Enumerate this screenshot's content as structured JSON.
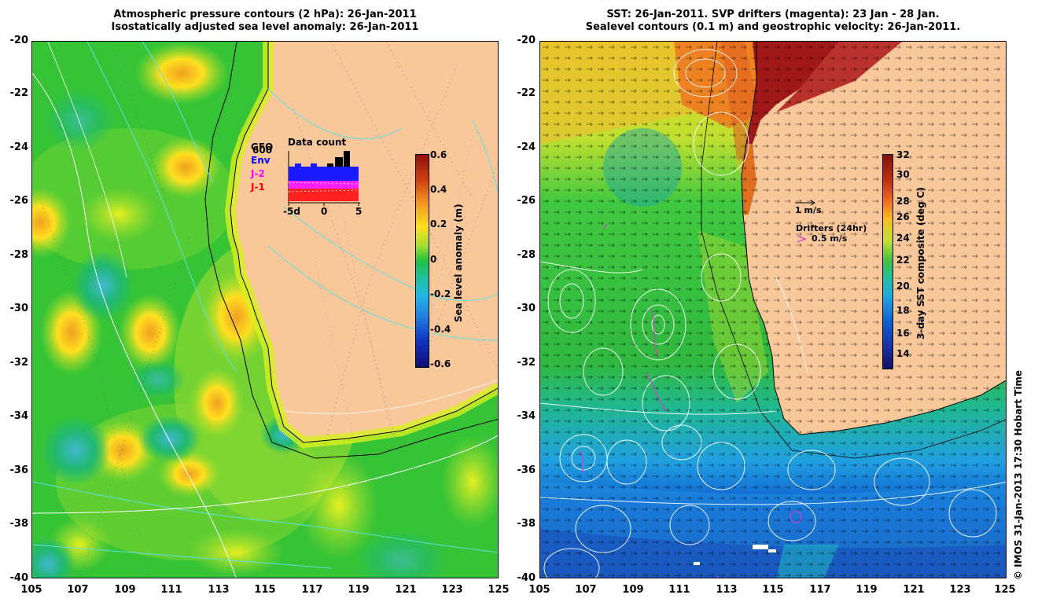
{
  "left_panel": {
    "title_line1": "Atmospheric pressure contours (2 hPa): 26-Jan-2011",
    "title_line2": "Isostatically adjusted sea level anomaly: 26-Jan-2011",
    "colorbar_label": "Sea level anomaly (m)",
    "colorbar_ticks": [
      "0.6",
      "0.4",
      "0.2",
      "0",
      "-0.2",
      "-0.4",
      "-0.6"
    ],
    "inset": {
      "title": "Data count",
      "legend": [
        {
          "label": "GFO",
          "color": "#000000"
        },
        {
          "label": "Env",
          "color": "#0000ff"
        },
        {
          "label": "J-2",
          "color": "#ff00ff"
        },
        {
          "label": "J-1",
          "color": "#ff0000"
        }
      ],
      "x_ticks": [
        "-5d",
        "0",
        "5"
      ],
      "count_label": "600"
    }
  },
  "right_panel": {
    "title_line1": "SST: 26-Jan-2011. SVP drifters (magenta): 23 Jan - 28 Jan.",
    "title_line2": "Sealevel contours (0.1 m) and geostrophic velocity: 26-Jan-2011.",
    "colorbar_label": "3-day SST composite (deg C)",
    "colorbar_ticks": [
      "32",
      "30",
      "28",
      "26",
      "24",
      "22",
      "20",
      "18",
      "16",
      "14"
    ],
    "velocity_scale": "1 m/s",
    "drifter_legend_title": "Drifters (24hr)",
    "drifter_legend_value": "0.5 m/s"
  },
  "axes": {
    "y_ticks": [
      "-20",
      "-22",
      "-24",
      "-26",
      "-28",
      "-30",
      "-32",
      "-34",
      "-36",
      "-38",
      "-40"
    ],
    "x_ticks": [
      "105",
      "107",
      "109",
      "111",
      "113",
      "115",
      "117",
      "119",
      "121",
      "123",
      "125"
    ]
  },
  "credit": "© IMOS 31-Jan-2013 17:30 Hobart Time",
  "colors": {
    "land": "#f9c89a",
    "ocean_base": "#2ecc2e",
    "anomaly_high": "#f0a020",
    "anomaly_low": "#3ab0c0",
    "sst_warm": "#a01818",
    "sst_cool": "#1030a0"
  }
}
